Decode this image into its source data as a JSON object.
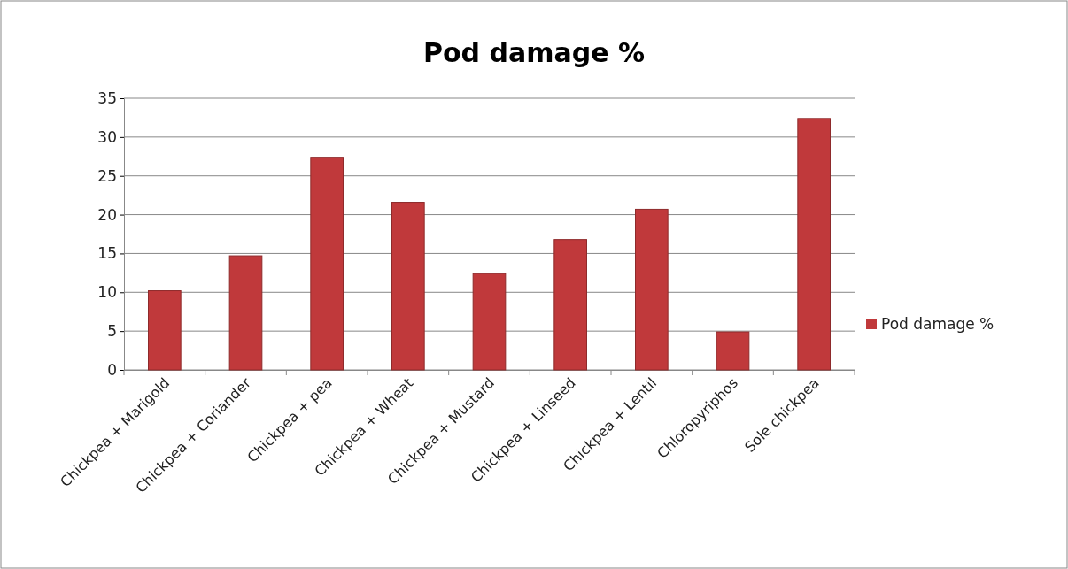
{
  "chart_data": {
    "type": "bar",
    "title": "Pod damage %",
    "categories": [
      "Chickpea + Marigold",
      "Chickpea + Coriander",
      "Chickpea + pea",
      "Chickpea + Wheat",
      "Chickpea + Mustard",
      "Chickpea + Linseed",
      "Chickpea + Lentil",
      "Chloropyriphos",
      "Sole chickpea"
    ],
    "series": [
      {
        "name": "Pod damage %",
        "color": "#c0393b",
        "values": [
          10.2,
          14.7,
          27.4,
          21.6,
          12.4,
          16.8,
          20.7,
          4.9,
          32.4
        ]
      }
    ],
    "ylim": [
      0,
      35
    ],
    "yticks": [
      0,
      5,
      10,
      15,
      20,
      25,
      30,
      35
    ],
    "grid": "y",
    "legend": "right"
  }
}
